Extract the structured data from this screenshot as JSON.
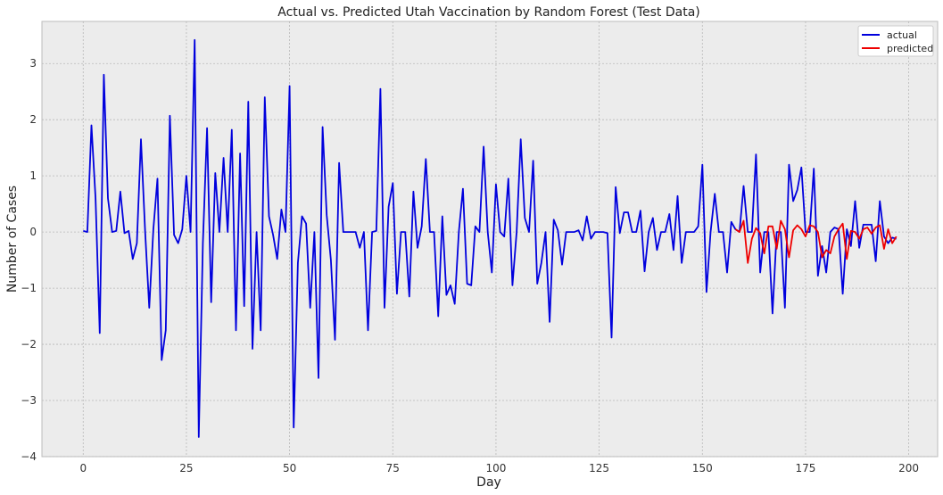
{
  "chart_data": {
    "type": "line",
    "title": "Actual vs. Predicted Utah Vaccination by Random Forest (Test Data)",
    "xlabel": "Day",
    "ylabel": "Number of Cases",
    "xlim": [
      -10,
      207
    ],
    "ylim": [
      -4,
      3.75
    ],
    "xticks": [
      0,
      25,
      50,
      75,
      100,
      125,
      150,
      175,
      200
    ],
    "yticks": [
      -4,
      -3,
      -2,
      -1,
      0,
      1,
      2,
      3
    ],
    "ytick_labels": [
      "−4",
      "−3",
      "−2",
      "−1",
      "0",
      "1",
      "2",
      "3"
    ],
    "grid": true,
    "legend_position": "top-right",
    "background": "#ececec",
    "series": [
      {
        "name": "actual",
        "color": "#0000dd",
        "x": [
          0,
          1,
          2,
          3,
          4,
          5,
          6,
          7,
          8,
          9,
          10,
          11,
          12,
          13,
          14,
          15,
          16,
          17,
          18,
          19,
          20,
          21,
          22,
          23,
          24,
          25,
          26,
          27,
          28,
          29,
          30,
          31,
          32,
          33,
          34,
          35,
          36,
          37,
          38,
          39,
          40,
          41,
          42,
          43,
          44,
          45,
          46,
          47,
          48,
          49,
          50,
          51,
          52,
          53,
          54,
          55,
          56,
          57,
          58,
          59,
          60,
          61,
          62,
          63,
          64,
          65,
          66,
          67,
          68,
          69,
          70,
          71,
          72,
          73,
          74,
          75,
          76,
          77,
          78,
          79,
          80,
          81,
          82,
          83,
          84,
          85,
          86,
          87,
          88,
          89,
          90,
          91,
          92,
          93,
          94,
          95,
          96,
          97,
          98,
          99,
          100,
          101,
          102,
          103,
          104,
          105,
          106,
          107,
          108,
          109,
          110,
          111,
          112,
          113,
          114,
          115,
          116,
          117,
          118,
          119,
          120,
          121,
          122,
          123,
          124,
          125,
          126,
          127,
          128,
          129,
          130,
          131,
          132,
          133,
          134,
          135,
          136,
          137,
          138,
          139,
          140,
          141,
          142,
          143,
          144,
          145,
          146,
          147,
          148,
          149,
          150,
          151,
          152,
          153,
          154,
          155,
          156,
          157,
          158,
          159,
          160,
          161,
          162,
          163,
          164,
          165,
          166,
          167,
          168,
          169,
          170,
          171,
          172,
          173,
          174,
          175,
          176,
          177,
          178,
          179,
          180,
          181,
          182,
          183,
          184,
          185,
          186,
          187,
          188,
          189,
          190,
          191,
          192,
          193,
          194,
          195,
          196,
          197
        ],
        "y": [
          0.02,
          0,
          1.9,
          0.6,
          -1.8,
          2.8,
          0.6,
          0,
          0.02,
          0.72,
          -0.02,
          0.02,
          -0.48,
          -0.2,
          1.65,
          0,
          -1.35,
          0.05,
          0.95,
          -2.28,
          -1.75,
          2.07,
          -0.05,
          -0.2,
          0.05,
          1.0,
          0,
          3.42,
          -3.65,
          -0.2,
          1.85,
          -1.25,
          1.05,
          0,
          1.32,
          0,
          1.82,
          -1.75,
          1.4,
          -1.32,
          2.32,
          -2.08,
          0,
          -1.75,
          2.4,
          0.28,
          -0.05,
          -0.48,
          0.4,
          0,
          2.6,
          -3.48,
          -0.55,
          0.28,
          0.15,
          -1.35,
          0,
          -2.6,
          1.87,
          0.3,
          -0.5,
          -1.92,
          1.23,
          0,
          0,
          0,
          0,
          -0.28,
          0,
          -1.75,
          0,
          0.02,
          2.55,
          -1.35,
          0.45,
          0.87,
          -1.1,
          0,
          0,
          -1.15,
          0.72,
          -0.28,
          0.1,
          1.3,
          0,
          0,
          -1.5,
          0.28,
          -1.12,
          -0.95,
          -1.28,
          0,
          0.77,
          -0.92,
          -0.95,
          0.1,
          0,
          1.52,
          0,
          -0.72,
          0.85,
          0,
          -0.08,
          0.95,
          -0.95,
          0,
          1.65,
          0.25,
          0,
          1.27,
          -0.92,
          -0.55,
          0,
          -1.6,
          0.22,
          0.03,
          -0.58,
          0,
          0,
          0,
          0.03,
          -0.15,
          0.28,
          -0.12,
          0,
          0,
          0,
          -0.02,
          -1.88,
          0.8,
          -0.02,
          0.35,
          0.35,
          0,
          0,
          0.38,
          -0.7,
          0,
          0.25,
          -0.32,
          0,
          0,
          0.32,
          -0.32,
          0.64,
          -0.55,
          0,
          0,
          0,
          0.1,
          1.2,
          -1.07,
          0,
          0.68,
          0,
          0,
          -0.72,
          0.18,
          0.05,
          0,
          0.82,
          0,
          0,
          1.38,
          -0.72,
          0,
          0,
          -1.45,
          0,
          0,
          -1.35,
          1.2,
          0.55,
          0.75,
          1.15,
          0,
          0,
          1.13,
          -0.78,
          -0.25,
          -0.72,
          0,
          0.08,
          0.05,
          -1.1,
          0.05,
          -0.25,
          0.55,
          -0.28,
          0.13,
          0.13,
          0.13,
          -0.52,
          0.55,
          -0.08,
          -0.2,
          -0.1,
          -0.12
        ]
      },
      {
        "name": "predicted",
        "color": "#ee0000",
        "x": [
          158,
          159,
          160,
          161,
          162,
          163,
          164,
          165,
          166,
          167,
          168,
          169,
          170,
          171,
          172,
          173,
          174,
          175,
          176,
          177,
          178,
          179,
          180,
          181,
          182,
          183,
          184,
          185,
          186,
          187,
          188,
          189,
          190,
          191,
          192,
          193,
          194,
          195,
          196,
          197
        ],
        "y": [
          0.05,
          0,
          0.2,
          -0.55,
          -0.12,
          0.07,
          -0.02,
          -0.38,
          0.1,
          0.1,
          -0.3,
          0.2,
          0.05,
          -0.45,
          0.03,
          0.12,
          0.05,
          -0.08,
          0.12,
          0.1,
          0,
          -0.45,
          -0.32,
          -0.38,
          -0.08,
          0.05,
          0.15,
          -0.48,
          0.02,
          0,
          -0.12,
          0.05,
          0.08,
          -0.03,
          0.08,
          0.12,
          -0.3,
          0.05,
          -0.2,
          -0.08
        ]
      }
    ]
  }
}
